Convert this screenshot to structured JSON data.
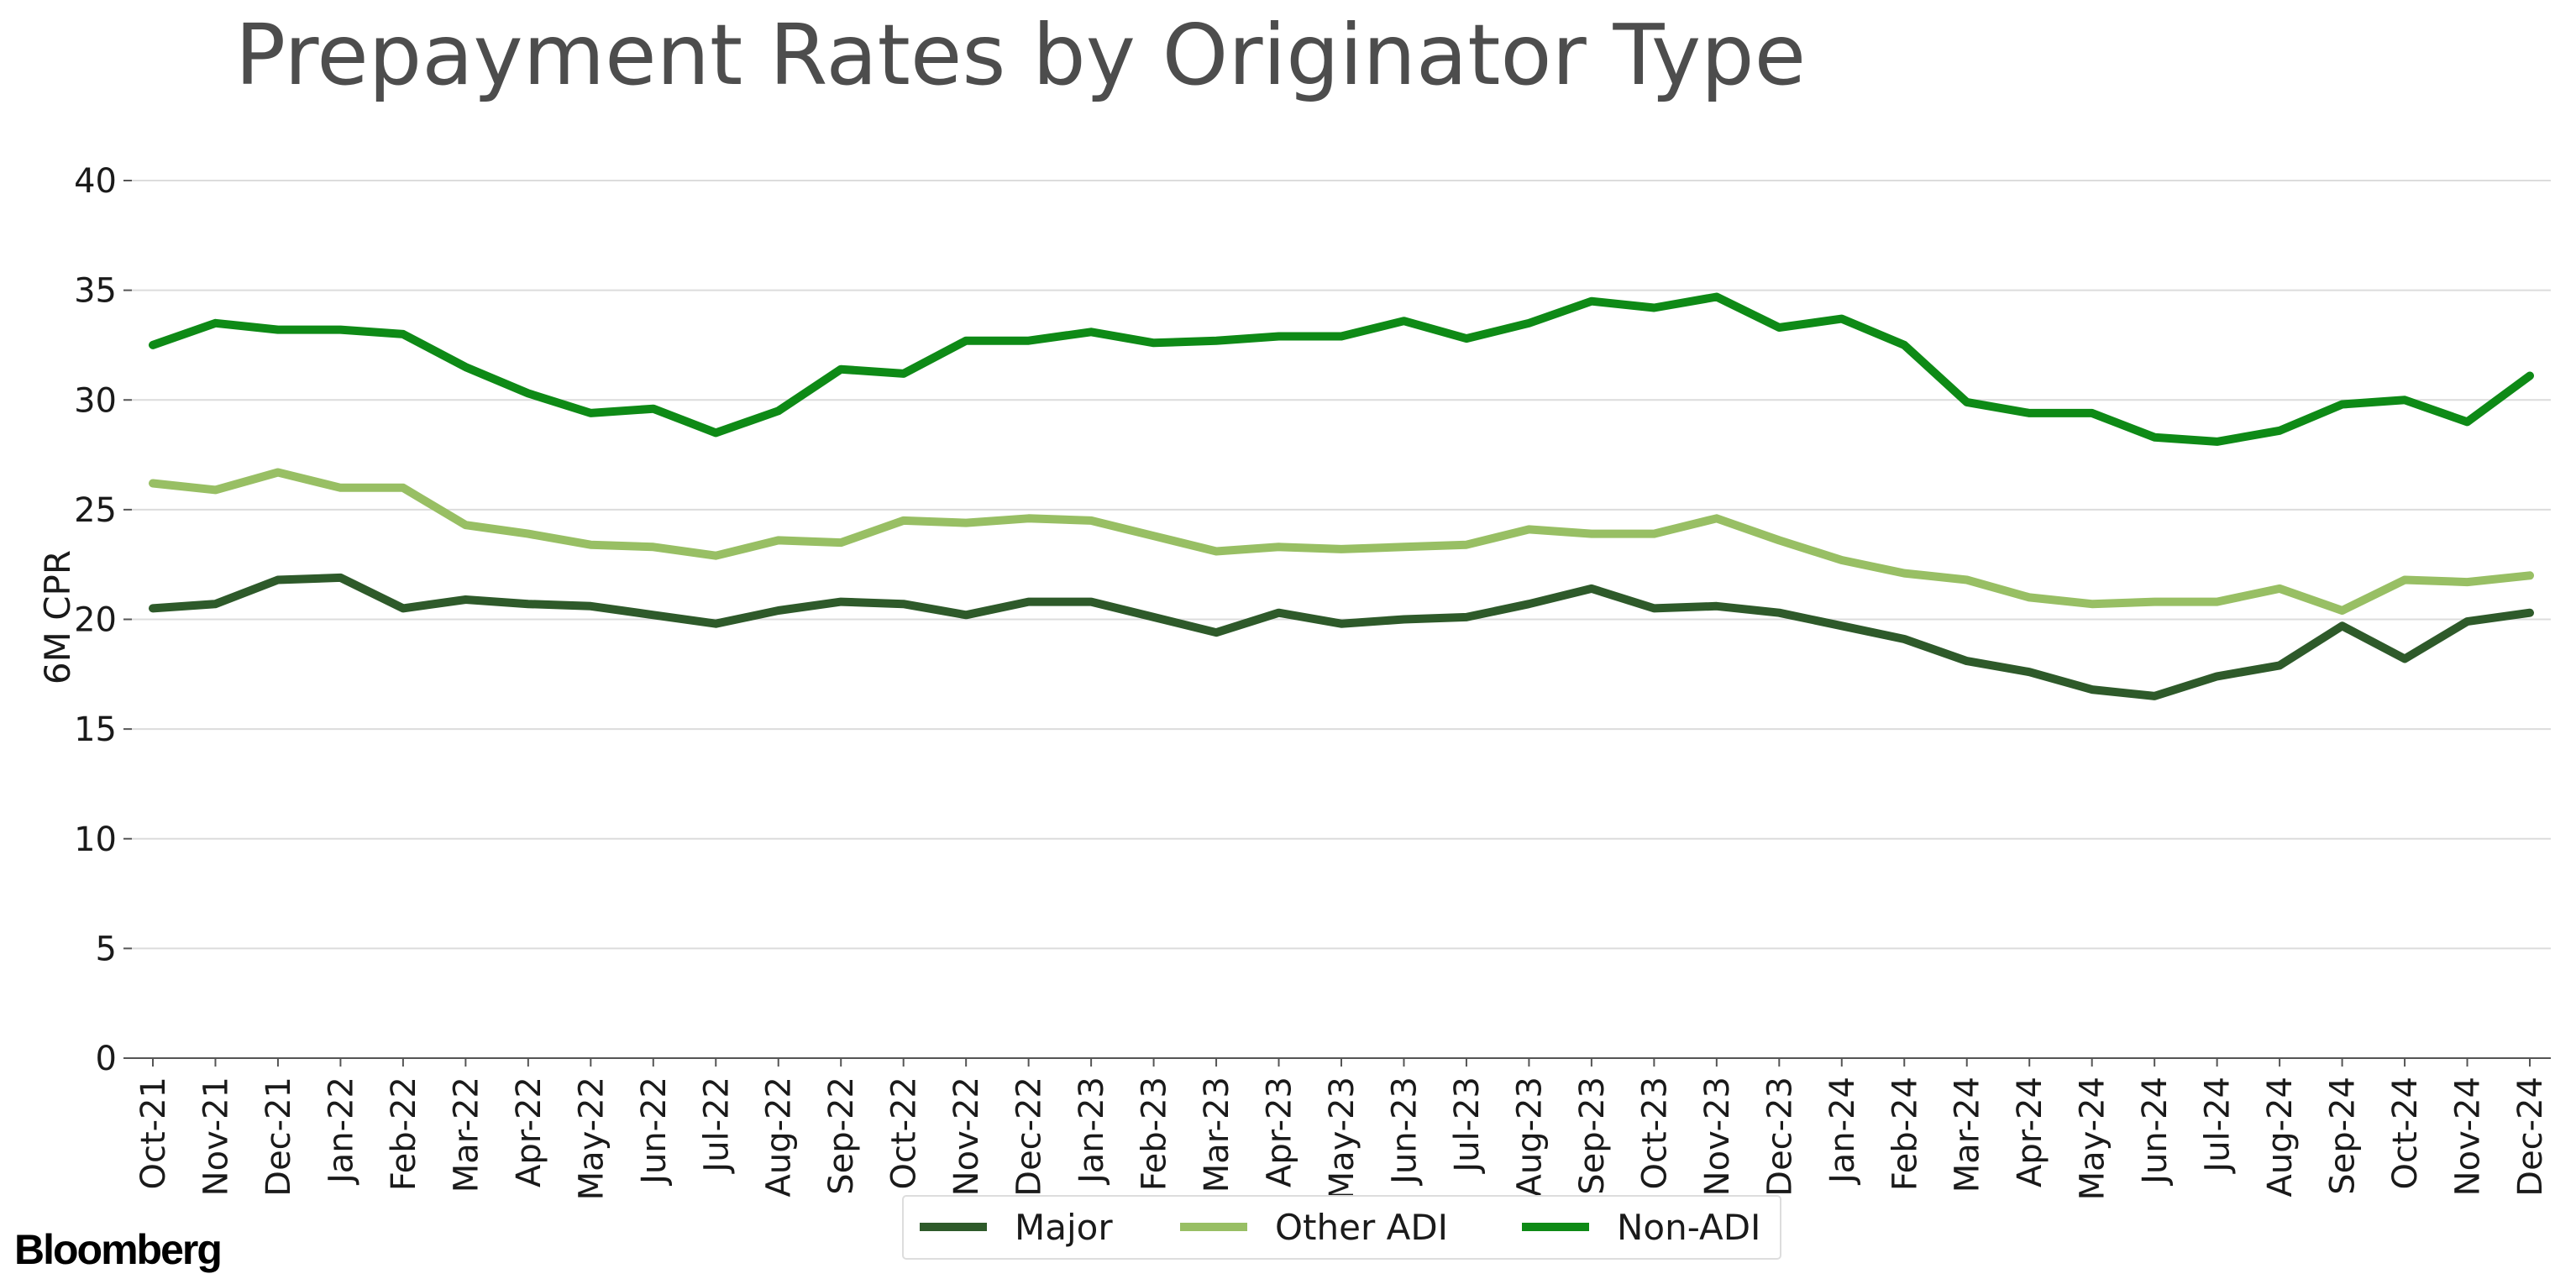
{
  "chart_data": {
    "type": "line",
    "title": "Prepayment Rates by Originator Type",
    "xlabel": "",
    "ylabel": "6M CPR",
    "ylim": [
      0,
      40
    ],
    "yticks": [
      0,
      5,
      10,
      15,
      20,
      25,
      30,
      35,
      40
    ],
    "grid": "horizontal",
    "legend_position": "bottom-center",
    "categories": [
      "Oct-21",
      "Nov-21",
      "Dec-21",
      "Jan-22",
      "Feb-22",
      "Mar-22",
      "Apr-22",
      "May-22",
      "Jun-22",
      "Jul-22",
      "Aug-22",
      "Sep-22",
      "Oct-22",
      "Nov-22",
      "Dec-22",
      "Jan-23",
      "Feb-23",
      "Mar-23",
      "Apr-23",
      "May-23",
      "Jun-23",
      "Jul-23",
      "Aug-23",
      "Sep-23",
      "Oct-23",
      "Nov-23",
      "Dec-23",
      "Jan-24",
      "Feb-24",
      "Mar-24",
      "Apr-24",
      "May-24",
      "Jun-24",
      "Jul-24",
      "Aug-24",
      "Sep-24",
      "Oct-24",
      "Nov-24",
      "Dec-24"
    ],
    "series": [
      {
        "name": "Major",
        "color": "#2e5a2a",
        "values": [
          20.5,
          20.7,
          21.8,
          21.9,
          20.5,
          20.9,
          20.7,
          20.6,
          20.2,
          19.8,
          20.4,
          20.8,
          20.7,
          20.2,
          20.8,
          20.8,
          20.1,
          19.4,
          20.3,
          19.8,
          20.0,
          20.1,
          20.7,
          21.4,
          20.5,
          20.6,
          20.3,
          19.7,
          19.1,
          18.1,
          17.6,
          16.8,
          16.5,
          17.4,
          17.9,
          19.7,
          18.2,
          19.9,
          20.3
        ]
      },
      {
        "name": "Other ADI",
        "color": "#98bf64",
        "values": [
          26.2,
          25.9,
          26.7,
          26.0,
          26.0,
          24.3,
          23.9,
          23.4,
          23.3,
          22.9,
          23.6,
          23.5,
          24.5,
          24.4,
          24.6,
          24.5,
          23.8,
          23.1,
          23.3,
          23.2,
          23.3,
          23.4,
          24.1,
          23.9,
          23.9,
          24.6,
          23.6,
          22.7,
          22.1,
          21.8,
          21.0,
          20.7,
          20.8,
          20.8,
          21.4,
          20.4,
          21.8,
          21.7,
          22.0
        ]
      },
      {
        "name": "Non-ADI",
        "color": "#0e8a16",
        "values": [
          32.5,
          33.5,
          33.2,
          33.2,
          33.0,
          31.5,
          30.3,
          29.4,
          29.6,
          28.5,
          29.5,
          31.4,
          31.2,
          32.7,
          32.7,
          33.1,
          32.6,
          32.7,
          32.9,
          32.9,
          33.6,
          32.8,
          33.5,
          34.5,
          34.2,
          34.7,
          33.3,
          33.7,
          32.5,
          29.9,
          29.4,
          29.4,
          28.3,
          28.1,
          28.6,
          29.8,
          30.0,
          29.0,
          31.1
        ]
      }
    ]
  },
  "brand": {
    "logo_text": "Bloomberg"
  }
}
